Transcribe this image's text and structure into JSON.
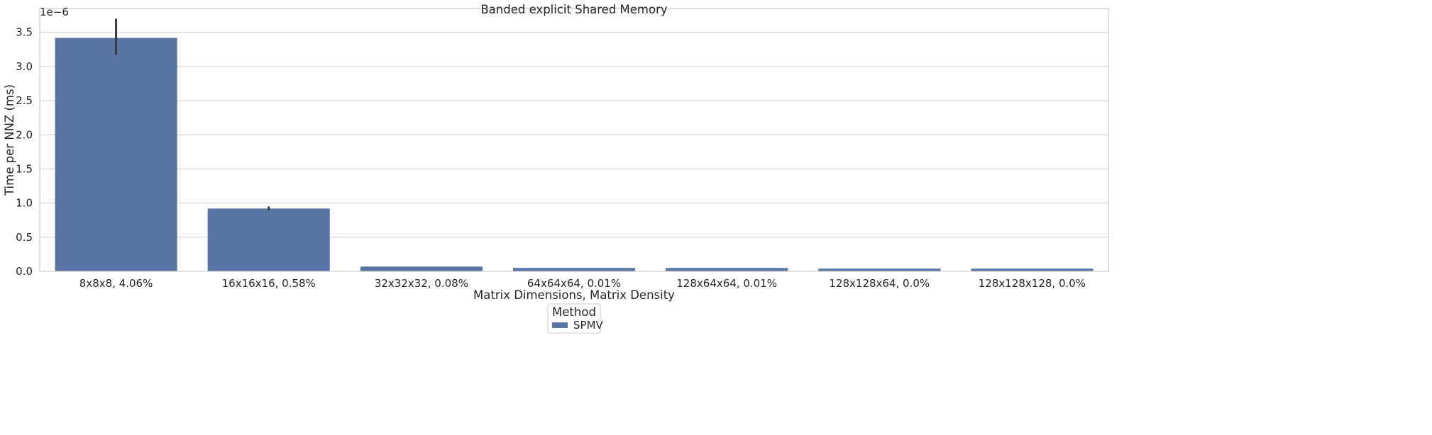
{
  "chart_data": {
    "type": "bar",
    "title": "Banded explicit Shared Memory",
    "xlabel": "Matrix Dimensions, Matrix Density",
    "ylabel": "Time per NNZ (ms)",
    "y_offset_label": "1e−6",
    "y_scale": 1e-06,
    "ylim": [
      0,
      3.85
    ],
    "yticks": [
      0.0,
      0.5,
      1.0,
      1.5,
      2.0,
      2.5,
      3.0,
      3.5
    ],
    "ytick_labels": [
      "0.0",
      "0.5",
      "1.0",
      "1.5",
      "2.0",
      "2.5",
      "3.0",
      "3.5"
    ],
    "grid": true,
    "categories": [
      "8x8x8, 4.06%",
      "16x16x16, 0.58%",
      "32x32x32, 0.08%",
      "64x64x64, 0.01%",
      "128x64x64, 0.01%",
      "128x128x64, 0.0%",
      "128x128x128, 0.0%"
    ],
    "series": [
      {
        "name": "SPMV",
        "color": "#5975a4",
        "values": [
          3.42,
          0.92,
          0.07,
          0.05,
          0.05,
          0.04,
          0.04
        ],
        "error_low": [
          3.17,
          0.89,
          0.07,
          0.05,
          0.05,
          0.04,
          0.04
        ],
        "error_high": [
          3.7,
          0.95,
          0.07,
          0.05,
          0.05,
          0.04,
          0.04
        ]
      }
    ],
    "legend": {
      "title": "Method",
      "placement": "bottom-center",
      "entries": [
        "SPMV"
      ]
    }
  }
}
